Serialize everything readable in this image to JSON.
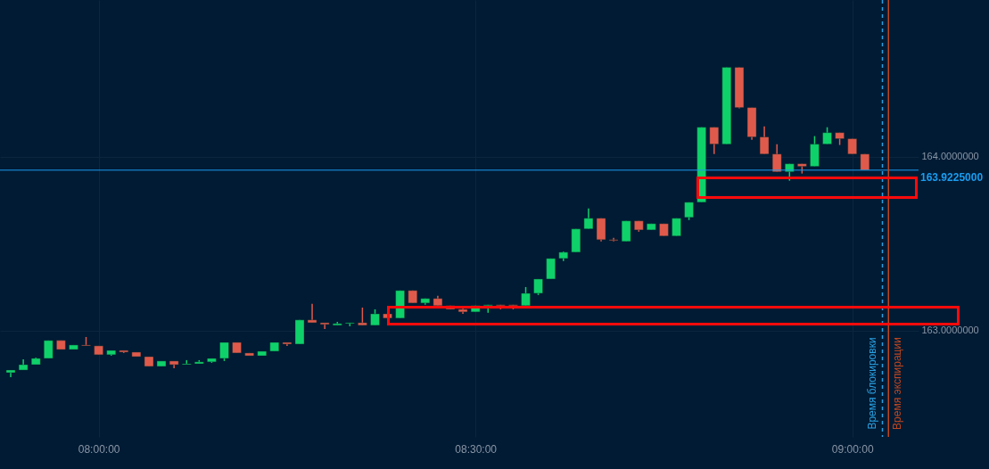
{
  "chart_data": {
    "type": "candlestick",
    "x": [
      7.8833,
      7.9,
      7.9167,
      7.9333,
      7.95,
      7.9667,
      7.9833,
      8,
      8.0167,
      8.0333,
      8.05,
      8.0667,
      8.0833,
      8.1,
      8.1167,
      8.1333,
      8.15,
      8.1667,
      8.1833,
      8.2,
      8.2167,
      8.2333,
      8.25,
      8.2667,
      8.2833,
      8.3,
      8.3167,
      8.3333,
      8.35,
      8.3667,
      8.3833,
      8.4,
      8.4167,
      8.4333,
      8.45,
      8.4667,
      8.4833,
      8.5,
      8.5167,
      8.5333,
      8.55,
      8.5667,
      8.5833,
      8.6,
      8.6167,
      8.6333,
      8.65,
      8.6667,
      8.6833,
      8.7,
      8.7167,
      8.7333,
      8.75,
      8.7667,
      8.7833,
      8.8,
      8.8167,
      8.8333,
      8.85,
      8.8667,
      8.8833,
      8.9,
      8.9167,
      8.9333,
      8.95,
      8.9667,
      8.9833,
      9,
      9.0167
    ],
    "ohlc": [
      [
        162.759,
        162.774,
        162.733,
        162.774
      ],
      [
        162.774,
        162.836,
        162.774,
        162.805
      ],
      [
        162.805,
        162.846,
        162.805,
        162.841
      ],
      [
        162.841,
        162.944,
        162.841,
        162.944
      ],
      [
        162.944,
        162.944,
        162.892,
        162.892
      ],
      [
        162.892,
        162.918,
        162.892,
        162.918
      ],
      [
        162.918,
        162.964,
        162.913,
        162.913
      ],
      [
        162.913,
        162.913,
        162.862,
        162.862
      ],
      [
        162.862,
        162.887,
        162.856,
        162.887
      ],
      [
        162.887,
        162.887,
        162.872,
        162.877
      ],
      [
        162.877,
        162.877,
        162.851,
        162.851
      ],
      [
        162.851,
        162.851,
        162.795,
        162.795
      ],
      [
        162.795,
        162.826,
        162.795,
        162.826
      ],
      [
        162.826,
        162.826,
        162.785,
        162.805
      ],
      [
        162.805,
        162.831,
        162.805,
        162.81
      ],
      [
        162.81,
        162.831,
        162.81,
        162.821
      ],
      [
        162.821,
        162.841,
        162.815,
        162.841
      ],
      [
        162.841,
        162.933,
        162.826,
        162.933
      ],
      [
        162.933,
        162.933,
        162.872,
        162.872
      ],
      [
        162.872,
        162.872,
        162.856,
        162.856
      ],
      [
        162.856,
        162.882,
        162.856,
        162.882
      ],
      [
        162.882,
        162.933,
        162.882,
        162.933
      ],
      [
        162.933,
        162.933,
        162.913,
        162.923
      ],
      [
        162.923,
        163.062,
        162.923,
        163.062
      ],
      [
        163.062,
        163.154,
        163.046,
        163.046
      ],
      [
        163.046,
        163.046,
        163.01,
        163.036
      ],
      [
        163.031,
        163.051,
        163.031,
        163.041
      ],
      [
        163.041,
        163.046,
        163.026,
        163.046
      ],
      [
        163.046,
        163.133,
        163.031,
        163.031
      ],
      [
        163.031,
        163.123,
        163.031,
        163.097
      ],
      [
        163.097,
        163.097,
        163.072,
        163.072
      ],
      [
        163.072,
        163.231,
        163.072,
        163.231
      ],
      [
        163.231,
        163.231,
        163.159,
        163.159
      ],
      [
        163.159,
        163.185,
        163.149,
        163.185
      ],
      [
        163.185,
        163.2,
        163.144,
        163.144
      ],
      [
        163.144,
        163.144,
        163.123,
        163.123
      ],
      [
        163.123,
        163.133,
        163.097,
        163.108
      ],
      [
        163.108,
        163.144,
        163.108,
        163.144
      ],
      [
        163.144,
        163.149,
        163.103,
        163.149
      ],
      [
        163.149,
        163.149,
        163.123,
        163.144
      ],
      [
        163.149,
        163.149,
        163.123,
        163.144
      ],
      [
        163.144,
        163.251,
        163.144,
        163.215
      ],
      [
        163.215,
        163.297,
        163.205,
        163.297
      ],
      [
        163.297,
        163.415,
        163.297,
        163.415
      ],
      [
        163.415,
        163.456,
        163.4,
        163.451
      ],
      [
        163.451,
        163.585,
        163.451,
        163.585
      ],
      [
        163.585,
        163.703,
        163.585,
        163.646
      ],
      [
        163.646,
        163.646,
        163.513,
        163.523
      ],
      [
        163.523,
        163.533,
        163.513,
        163.518
      ],
      [
        163.513,
        163.631,
        163.513,
        163.631
      ],
      [
        163.631,
        163.631,
        163.569,
        163.579
      ],
      [
        163.579,
        163.615,
        163.579,
        163.615
      ],
      [
        163.615,
        163.615,
        163.544,
        163.544
      ],
      [
        163.544,
        163.646,
        163.544,
        163.646
      ],
      [
        163.651,
        163.738,
        163.636,
        163.738
      ],
      [
        163.738,
        164.169,
        163.738,
        164.169
      ],
      [
        164.169,
        164.169,
        164.015,
        164.072
      ],
      [
        164.072,
        164.513,
        164.072,
        164.513
      ],
      [
        164.513,
        164.513,
        164.277,
        164.282
      ],
      [
        164.282,
        164.282,
        164.097,
        164.113
      ],
      [
        164.113,
        164.174,
        164.015,
        164.015
      ],
      [
        164.015,
        164.072,
        163.913,
        163.913
      ],
      [
        163.913,
        163.959,
        163.862,
        163.959
      ],
      [
        163.959,
        163.959,
        163.903,
        163.944
      ],
      [
        163.944,
        164.118,
        163.944,
        164.072
      ],
      [
        164.072,
        164.169,
        164.072,
        164.138
      ],
      [
        164.138,
        164.138,
        164.067,
        164.103
      ],
      [
        164.103,
        164.103,
        164.015,
        164.015
      ],
      [
        164.015,
        164.015,
        163.9225,
        163.9225
      ]
    ],
    "colors": [
      "#0fd16a",
      "#0fd16a",
      "#0fd16a",
      "#0fd16a",
      "#e05a4c",
      "#0fd16a",
      "#e05a4c",
      "#e05a4c",
      "#0fd16a",
      "#e05a4c",
      "#e05a4c",
      "#e05a4c",
      "#0fd16a",
      "#e05a4c",
      "#0fd16a",
      "#0fd16a",
      "#0fd16a",
      "#0fd16a",
      "#e05a4c",
      "#e05a4c",
      "#0fd16a",
      "#0fd16a",
      "#e05a4c",
      "#0fd16a",
      "#e05a4c",
      "#e05a4c",
      "#0fd16a",
      "#0fd16a",
      "#e05a4c",
      "#0fd16a",
      "#e05a4c",
      "#0fd16a",
      "#e05a4c",
      "#0fd16a",
      "#e05a4c",
      "#e05a4c",
      "#e05a4c",
      "#0fd16a",
      "#0fd16a",
      "#e05a4c",
      "#e05a4c",
      "#0fd16a",
      "#0fd16a",
      "#0fd16a",
      "#0fd16a",
      "#0fd16a",
      "#0fd16a",
      "#e05a4c",
      "#e05a4c",
      "#0fd16a",
      "#e05a4c",
      "#0fd16a",
      "#e05a4c",
      "#0fd16a",
      "#0fd16a",
      "#0fd16a",
      "#e05a4c",
      "#0fd16a",
      "#e05a4c",
      "#e05a4c",
      "#e05a4c",
      "#e05a4c",
      "#0fd16a",
      "#e05a4c",
      "#0fd16a",
      "#0fd16a",
      "#e05a4c",
      "#e05a4c",
      "#e05a4c"
    ],
    "xlim": [
      7.875,
      9.082
    ],
    "ylim": [
      162.39,
      164.9
    ],
    "xticks": [
      {
        "value": 8,
        "label": "08:00:00"
      },
      {
        "value": 8.5,
        "label": "08:30:00"
      },
      {
        "value": 9,
        "label": "09:00:00"
      }
    ],
    "yticks": [
      {
        "value": 164,
        "label": "164.0000000"
      },
      {
        "value": 163,
        "label": "163.0000000"
      }
    ],
    "grid": true,
    "ref_lines": [
      {
        "axis": "y",
        "value": 163.9225,
        "label": "163.9225000",
        "color": "#1a9df0"
      },
      {
        "axis": "x",
        "value": 9.04,
        "label": "Время блокировки",
        "color": "#2a9fe0",
        "line_style": "dashed"
      },
      {
        "axis": "x",
        "value": 9.048,
        "label": "Время экспирации",
        "color": "#c0461f"
      }
    ]
  }
}
